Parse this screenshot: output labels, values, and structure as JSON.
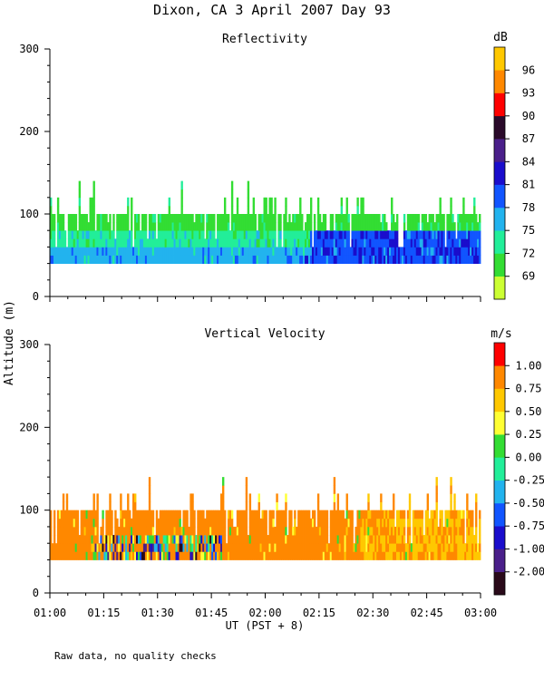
{
  "title": "Dixon, CA  3 April 2007  Day  93",
  "ylabel": "Altitude (m)",
  "xlabel": "UT  (PST + 8)",
  "footnote": "Raw data, no quality checks",
  "chart_data": [
    {
      "type": "heatmap",
      "title": "Reflectivity",
      "ylim": [
        0,
        300
      ],
      "yticks": [
        0,
        100,
        200,
        300
      ],
      "xlim": [
        "01:00",
        "03:00"
      ],
      "xticks": [
        "01:00",
        "01:15",
        "01:30",
        "01:45",
        "02:00",
        "02:15",
        "02:30",
        "02:45",
        "03:00"
      ],
      "colorbar": {
        "unit": "dB",
        "labels": [
          "69",
          "72",
          "75",
          "78",
          "81",
          "84",
          "87",
          "90",
          "93",
          "96"
        ],
        "colors": [
          "#ccff33",
          "#33dd33",
          "#22ee99",
          "#22b3ee",
          "#1155ff",
          "#1a0dcc",
          "#4a1f8a",
          "#2a0a2a",
          "#ff0000",
          "#ff8800",
          "#ffc800"
        ]
      },
      "range_gate_altitude_m": [
        40,
        140
      ],
      "summary": "Echo between ~40 and ~100 m, mostly 72-78 dB; values rise to 81-84 dB near 40-70 m after 02:20."
    },
    {
      "type": "heatmap",
      "title": "Vertical Velocity",
      "ylim": [
        0,
        300
      ],
      "yticks": [
        0,
        100,
        200,
        300
      ],
      "xlim": [
        "01:00",
        "03:00"
      ],
      "xticks": [
        "01:00",
        "01:15",
        "01:30",
        "01:45",
        "02:00",
        "02:15",
        "02:30",
        "02:45",
        "03:00"
      ],
      "colorbar": {
        "unit": "m/s",
        "labels": [
          "-2.00",
          "-1.00",
          "-0.75",
          "-0.50",
          "-0.25",
          "0.00",
          "0.25",
          "0.50",
          "0.75",
          "1.00"
        ],
        "colors": [
          "#2a0a1a",
          "#4a1f8a",
          "#1a0dcc",
          "#1155ff",
          "#22b3ee",
          "#22ee99",
          "#33dd33",
          "#ffff33",
          "#ffc800",
          "#ff8800",
          "#ff0000"
        ]
      },
      "range_gate_altitude_m": [
        40,
        140
      ],
      "summary": "Mostly 0.75 m/s (orange) from 40-100 m; mixed negative velocities 01:15-01:45 below ~70 m; 0.50 m/s (yellow) after 02:40."
    }
  ]
}
